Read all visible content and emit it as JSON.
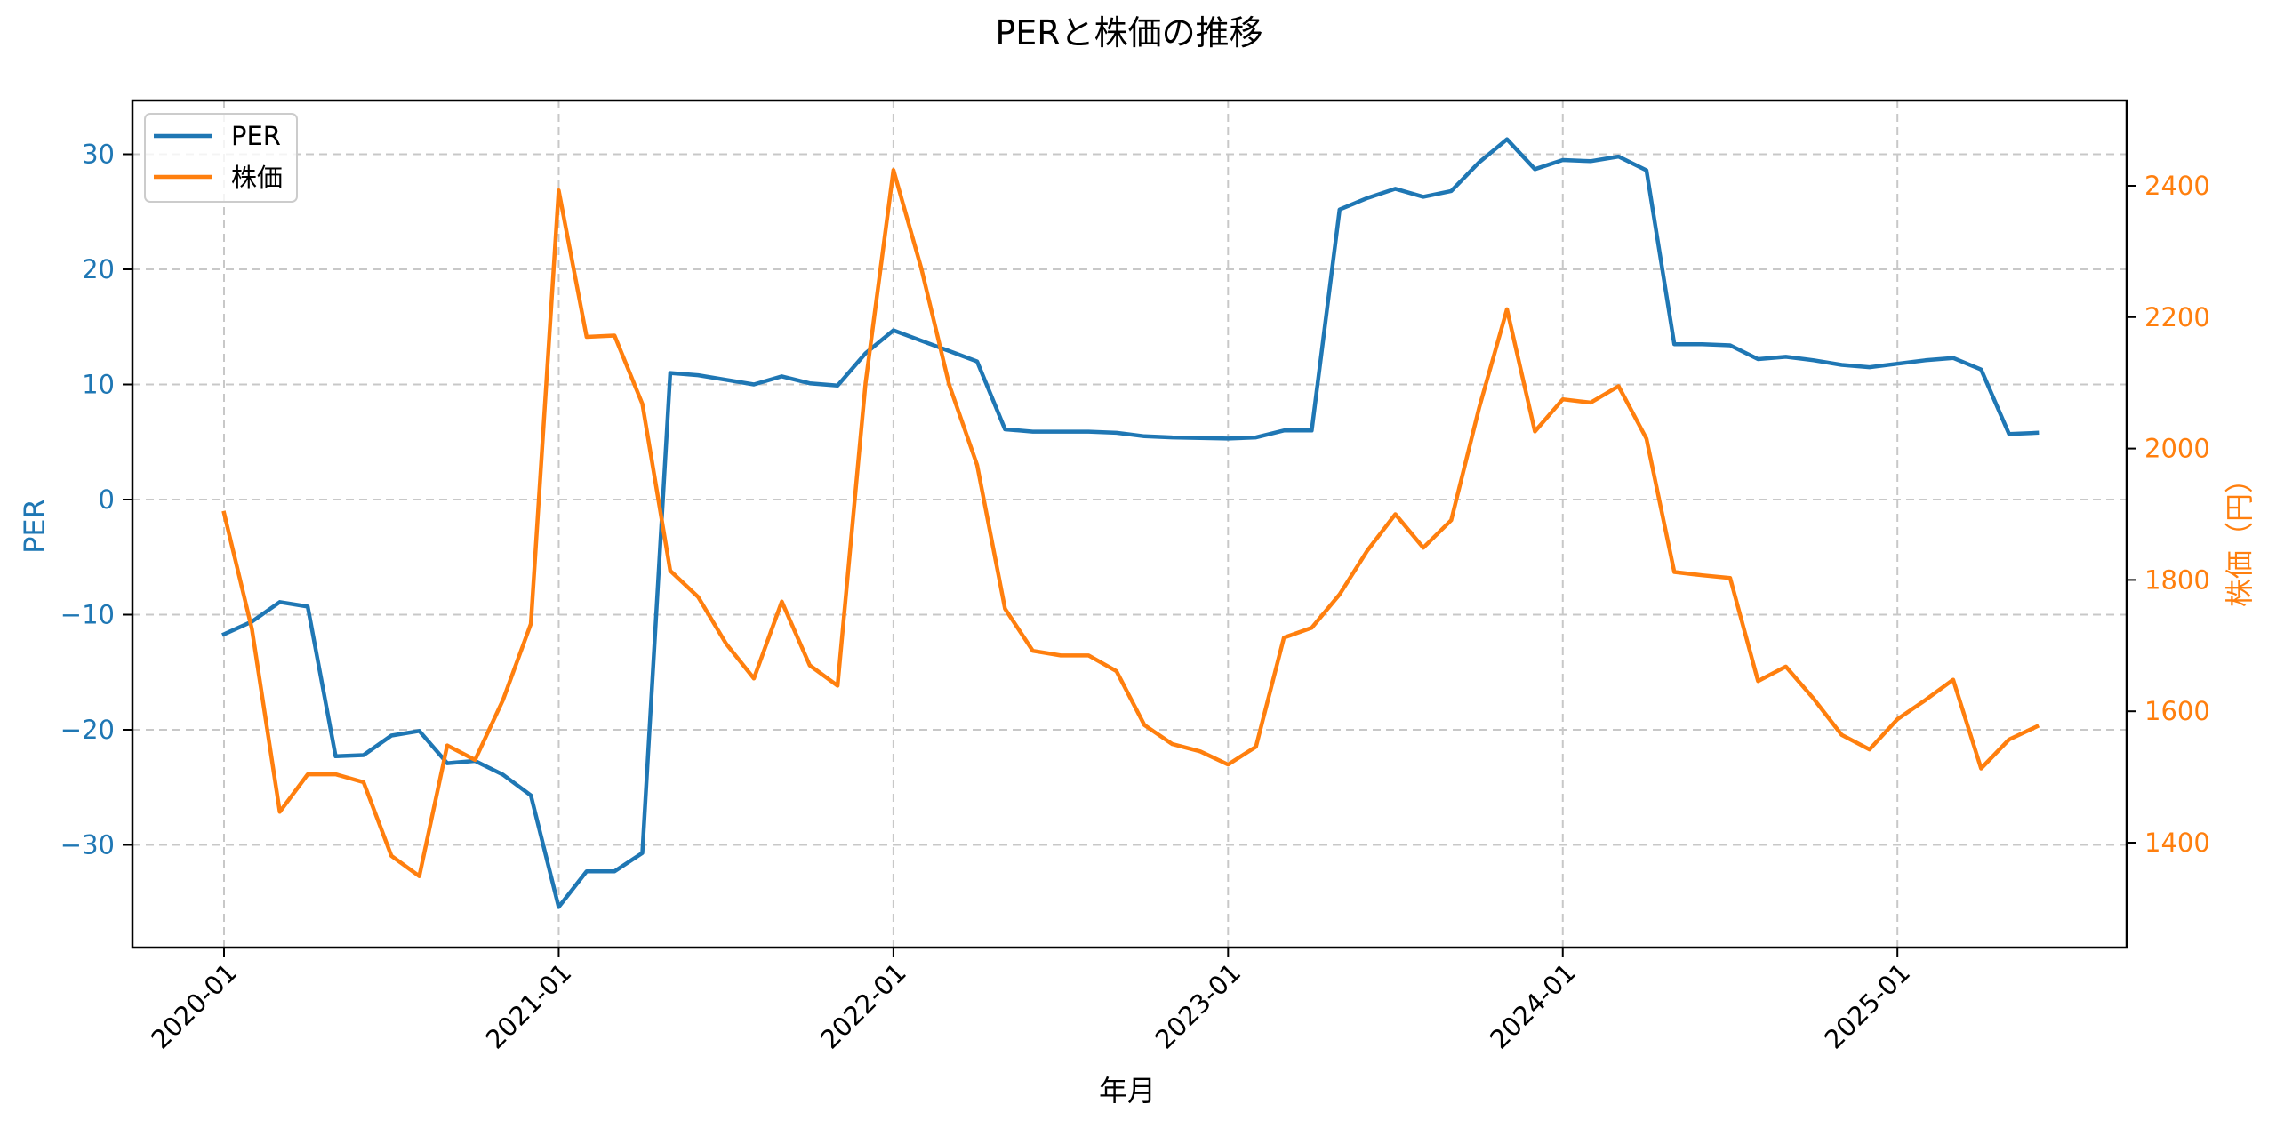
{
  "chart_data": {
    "type": "line",
    "title": "PERと株価の推移",
    "xlabel": "年月",
    "ylabel_left": "PER",
    "ylabel_right": "株価（円）",
    "grid": true,
    "legend_position": "upper left",
    "x_ticks": [
      "2020-01",
      "2021-01",
      "2022-01",
      "2023-01",
      "2024-01",
      "2025-01"
    ],
    "y_left_ticks": [
      30,
      20,
      10,
      0,
      -10,
      -20,
      -30
    ],
    "y_left_tick_labels": [
      "30",
      "20",
      "10",
      "0",
      "−10",
      "−20",
      "−30"
    ],
    "y_right_ticks": [
      2400,
      2200,
      2000,
      1800,
      1600,
      1400
    ],
    "y_right_tick_labels": [
      "2400",
      "2200",
      "2000",
      "1800",
      "1600",
      "1400"
    ],
    "ylim_left": [
      -39,
      35
    ],
    "ylim_right": [
      1240,
      2530
    ],
    "x": [
      "2020-01",
      "2020-02",
      "2020-03",
      "2020-04",
      "2020-05",
      "2020-06",
      "2020-07",
      "2020-08",
      "2020-09",
      "2020-10",
      "2020-11",
      "2020-12",
      "2021-01",
      "2021-02",
      "2021-03",
      "2021-04",
      "2021-05",
      "2021-06",
      "2021-07",
      "2021-08",
      "2021-09",
      "2021-10",
      "2021-11",
      "2021-12",
      "2022-01",
      "2022-02",
      "2022-03",
      "2022-04",
      "2022-05",
      "2022-06",
      "2022-07",
      "2022-08",
      "2022-09",
      "2022-10",
      "2022-11",
      "2022-12",
      "2023-01",
      "2023-02",
      "2023-03",
      "2023-04",
      "2023-05",
      "2023-06",
      "2023-07",
      "2023-08",
      "2023-09",
      "2023-10",
      "2023-11",
      "2023-12",
      "2024-01",
      "2024-02",
      "2024-03",
      "2024-04",
      "2024-05",
      "2024-06",
      "2024-07",
      "2024-08",
      "2024-09",
      "2024-10",
      "2024-11",
      "2024-12",
      "2025-01",
      "2025-02",
      "2025-03",
      "2025-04",
      "2025-05",
      "2025-06"
    ],
    "series": [
      {
        "name": "PER",
        "axis": "left",
        "color": "#1f77b4",
        "values": [
          -11.7,
          -10.6,
          -8.9,
          -9.3,
          -22.3,
          -22.2,
          -20.5,
          -20.1,
          -22.9,
          -22.7,
          -23.9,
          -25.7,
          -35.4,
          -32.3,
          -32.3,
          -30.7,
          11.0,
          10.8,
          10.4,
          10.0,
          10.7,
          10.1,
          9.9,
          12.7,
          14.7,
          13.8,
          12.9,
          12.0,
          6.1,
          5.9,
          5.9,
          5.9,
          5.8,
          5.5,
          5.4,
          5.35,
          5.3,
          5.4,
          6.0,
          6.0,
          25.2,
          26.2,
          27.0,
          26.3,
          26.8,
          29.3,
          31.3,
          28.7,
          29.5,
          29.4,
          29.8,
          28.6,
          13.5,
          13.5,
          13.4,
          12.2,
          12.4,
          12.1,
          11.7,
          11.5,
          11.8,
          12.1,
          12.3,
          11.3,
          5.7,
          5.8
        ]
      },
      {
        "name": "株価",
        "axis": "right",
        "color": "#ff7f0e",
        "values": [
          1902,
          1725,
          1447,
          1504,
          1504,
          1492,
          1380,
          1349,
          1548,
          1526,
          1617,
          1733,
          2393,
          2170,
          2172,
          2068,
          1814,
          1774,
          1703,
          1650,
          1767,
          1670,
          1639,
          2099,
          2424,
          2274,
          2097,
          1975,
          1756,
          1692,
          1685,
          1685,
          1661,
          1579,
          1550,
          1539,
          1519,
          1546,
          1712,
          1727,
          1778,
          1845,
          1900,
          1849,
          1891,
          2062,
          2212,
          2026,
          2075,
          2070,
          2095,
          2015,
          1812,
          1807,
          1803,
          1646,
          1668,
          1619,
          1564,
          1542,
          1588,
          1617,
          1648,
          1513,
          1557,
          1577
        ]
      }
    ]
  },
  "legend": {
    "items": [
      {
        "label": "PER",
        "color": "#1f77b4"
      },
      {
        "label": "株価",
        "color": "#ff7f0e"
      }
    ]
  },
  "colors": {
    "per": "#1f77b4",
    "price": "#ff7f0e",
    "grid": "#c8c8c8",
    "axis": "#000000"
  }
}
